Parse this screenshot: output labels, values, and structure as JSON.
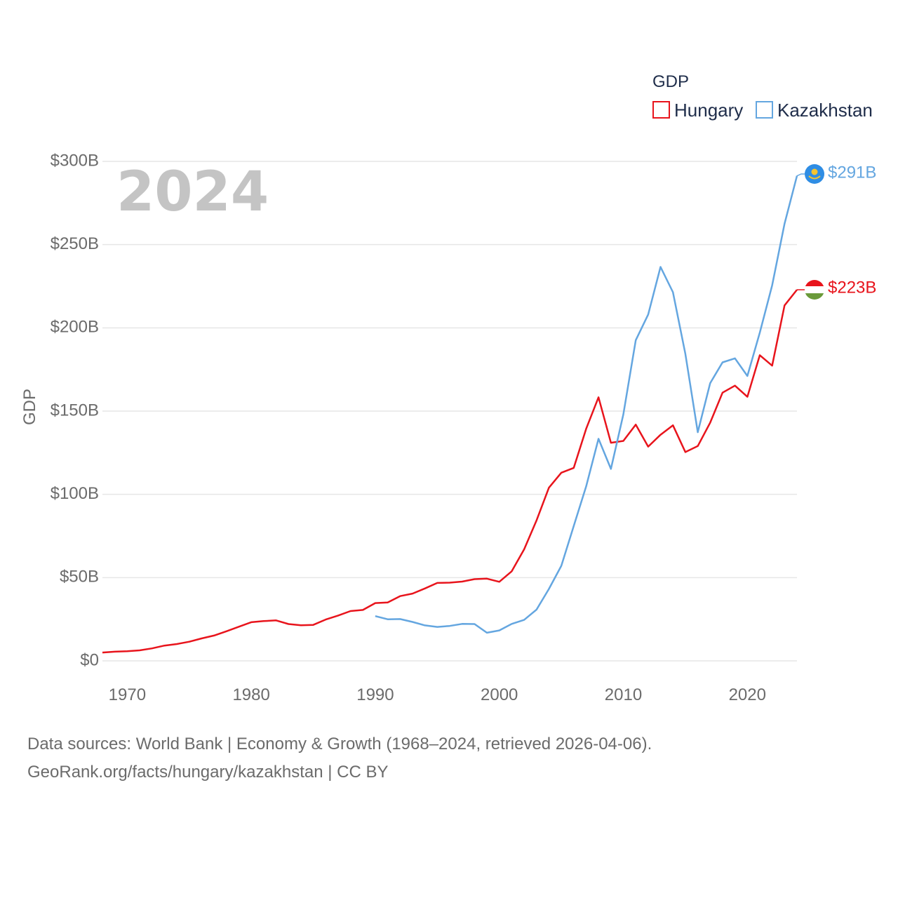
{
  "chart_data": {
    "type": "line",
    "title": "",
    "year_label": "2024",
    "xlabel": "",
    "ylabel": "GDP",
    "xlim": [
      1968,
      2024
    ],
    "ylim": [
      0,
      300
    ],
    "y_unit": "billion USD",
    "x_ticks": [
      1970,
      1980,
      1990,
      2000,
      2010,
      2020
    ],
    "y_ticks": [
      {
        "value": 0,
        "label": "$0"
      },
      {
        "value": 50,
        "label": "$50B"
      },
      {
        "value": 100,
        "label": "$100B"
      },
      {
        "value": 150,
        "label": "$150B"
      },
      {
        "value": 200,
        "label": "$200B"
      },
      {
        "value": 250,
        "label": "$250B"
      },
      {
        "value": 300,
        "label": "$300B"
      }
    ],
    "legend": {
      "title": "GDP",
      "placement": "top-right"
    },
    "series": [
      {
        "name": "Hungary",
        "color": "#e8141c",
        "end_label": "$223B",
        "flag": "hungary-flag-icon",
        "x": [
          1968,
          1969,
          1970,
          1971,
          1972,
          1973,
          1974,
          1975,
          1976,
          1977,
          1978,
          1979,
          1980,
          1981,
          1982,
          1983,
          1984,
          1985,
          1986,
          1987,
          1988,
          1989,
          1990,
          1991,
          1992,
          1993,
          1994,
          1995,
          1996,
          1997,
          1998,
          1999,
          2000,
          2001,
          2002,
          2003,
          2004,
          2005,
          2006,
          2007,
          2008,
          2009,
          2010,
          2011,
          2012,
          2013,
          2014,
          2015,
          2016,
          2017,
          2018,
          2019,
          2020,
          2021,
          2022,
          2023,
          2024
        ],
        "values": [
          5,
          5.5,
          5.8,
          6.3,
          7.5,
          9.2,
          10.1,
          11.5,
          13.5,
          15.2,
          17.8,
          20.5,
          23.2,
          23.9,
          24.3,
          22.1,
          21.4,
          21.6,
          24.8,
          27.2,
          29.9,
          30.6,
          34.7,
          35.1,
          38.9,
          40.4,
          43.5,
          46.8,
          47.0,
          47.6,
          49.1,
          49.4,
          47.5,
          53.8,
          67.0,
          84.4,
          104.0,
          113.0,
          115.9,
          139.4,
          158.3,
          131.0,
          132.1,
          141.9,
          128.7,
          135.8,
          141.5,
          125.4,
          129.0,
          143.1,
          161.1,
          165.3,
          158.6,
          183.6,
          177.3,
          213.5,
          222.9
        ]
      },
      {
        "name": "Kazakhstan",
        "color": "#64a6e0",
        "end_label": "$291B",
        "flag": "kazakhstan-flag-icon",
        "x": [
          1990,
          1991,
          1992,
          1993,
          1994,
          1995,
          1996,
          1997,
          1998,
          1999,
          2000,
          2001,
          2002,
          2003,
          2004,
          2005,
          2006,
          2007,
          2008,
          2009,
          2010,
          2011,
          2012,
          2013,
          2014,
          2015,
          2016,
          2017,
          2018,
          2019,
          2020,
          2021,
          2022,
          2023,
          2024
        ],
        "values": [
          26.9,
          25.0,
          25.1,
          23.4,
          21.3,
          20.4,
          21.0,
          22.2,
          22.1,
          16.9,
          18.3,
          22.2,
          24.6,
          30.8,
          43.2,
          57.1,
          81.0,
          104.8,
          133.4,
          115.3,
          148.0,
          192.6,
          208.0,
          236.6,
          221.4,
          184.4,
          137.3,
          166.8,
          179.3,
          181.7,
          171.1,
          197.1,
          225.5,
          262.6,
          291.3
        ]
      }
    ]
  },
  "footer": {
    "line1": "Data sources: World Bank | Economy & Growth (1968–2024, retrieved 2026-04-06).",
    "line2": "GeoRank.org/facts/hungary/kazakhstan | CC BY"
  }
}
